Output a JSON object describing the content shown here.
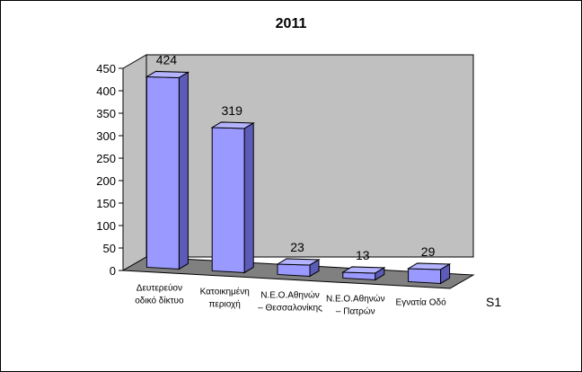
{
  "chart_data": {
    "type": "bar",
    "title": "2011",
    "categories": [
      [
        "Δευτερεύον",
        "οδικό δίκτυο"
      ],
      [
        "Κατοικημένη",
        "περιοχή"
      ],
      [
        "Ν.Ε.Ο.Αθηνών",
        "– Θεσσαλονίκης"
      ],
      [
        "Ν.Ε.Ο.Αθηνών",
        "– Πατρών"
      ],
      [
        "Εγνατία Οδό"
      ]
    ],
    "series": [
      {
        "name": "S1",
        "values": [
          424,
          319,
          23,
          13,
          29
        ]
      }
    ],
    "data_labels": [
      "424",
      "319",
      "23",
      "13",
      "29"
    ],
    "ylim": [
      0,
      450
    ],
    "yticks": [
      0,
      50,
      100,
      150,
      200,
      250,
      300,
      350,
      400,
      450
    ],
    "xlabel": "",
    "ylabel": "",
    "grid": false,
    "style": "3d-column",
    "colors": {
      "bar_front": "#9999FF",
      "bar_top": "#B3B3FF",
      "bar_side": "#5C5CB8",
      "back_wall": "#C0C0C0",
      "floor": "#808080"
    }
  }
}
